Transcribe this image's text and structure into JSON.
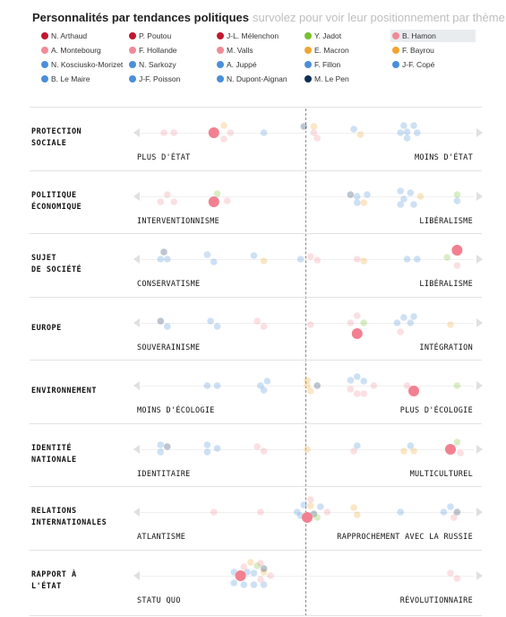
{
  "header": {
    "title": "Personnalités par tendances politiques",
    "subtitle": "survolez pour voir leur positionnement par thème"
  },
  "colors": {
    "far_left": "#c0182e",
    "green": "#78c02f",
    "socialist": "#f08b98",
    "center": "#f0a52f",
    "right": "#4a8fd8",
    "far_right": "#0d2f57",
    "highlight": "#f28090"
  },
  "legend": [
    {
      "name": "N. Arthaud",
      "color": "#c0182e"
    },
    {
      "name": "P. Poutou",
      "color": "#c0182e"
    },
    {
      "name": "J-L. Mélenchon",
      "color": "#c0182e"
    },
    {
      "name": "Y. Jadot",
      "color": "#78c02f"
    },
    {
      "name": "B. Hamon",
      "color": "#f08b98",
      "highlighted": true
    },
    {
      "name": "A. Montebourg",
      "color": "#f08b98"
    },
    {
      "name": "F. Hollande",
      "color": "#f08b98"
    },
    {
      "name": "M. Valls",
      "color": "#f08b98"
    },
    {
      "name": "E. Macron",
      "color": "#f0a52f"
    },
    {
      "name": "F. Bayrou",
      "color": "#f0a52f"
    },
    {
      "name": "N. Kosciusko-Morizet",
      "color": "#4a8fd8"
    },
    {
      "name": "N. Sarkozy",
      "color": "#4a8fd8"
    },
    {
      "name": "A. Juppé",
      "color": "#4a8fd8"
    },
    {
      "name": "F. Fillon",
      "color": "#4a8fd8"
    },
    {
      "name": "J-F. Copé",
      "color": "#4a8fd8"
    },
    {
      "name": "B. Le Maire",
      "color": "#4a8fd8"
    },
    {
      "name": "J-F. Poisson",
      "color": "#4a8fd8"
    },
    {
      "name": "N. Dupont-Aignan",
      "color": "#4a8fd8"
    },
    {
      "name": "M. Le Pen",
      "color": "#0d2f57"
    }
  ],
  "chart_data": {
    "type": "scatter",
    "scale": "position from left pole (0) to right pole (1), 0.5 = neutral",
    "rows": [
      {
        "label": "PROTECTION\nSOCIALE",
        "left": "PLUS D'ÉTAT",
        "right": "MOINS D'ÉTAT",
        "points": [
          {
            "x": 0.07,
            "dy": 0,
            "c": "socialist"
          },
          {
            "x": 0.1,
            "dy": 0,
            "c": "socialist"
          },
          {
            "x": 0.22,
            "dy": 0,
            "c": "socialist",
            "hl": true
          },
          {
            "x": 0.25,
            "dy": -8,
            "c": "center"
          },
          {
            "x": 0.25,
            "dy": 7,
            "c": "socialist"
          },
          {
            "x": 0.27,
            "dy": 0,
            "c": "socialist"
          },
          {
            "x": 0.37,
            "dy": 0,
            "c": "right"
          },
          {
            "x": 0.49,
            "dy": -7,
            "c": "far_right"
          },
          {
            "x": 0.52,
            "dy": -7,
            "c": "center"
          },
          {
            "x": 0.52,
            "dy": 0,
            "c": "socialist"
          },
          {
            "x": 0.53,
            "dy": 6,
            "c": "socialist"
          },
          {
            "x": 0.64,
            "dy": -4,
            "c": "right"
          },
          {
            "x": 0.66,
            "dy": 2,
            "c": "center"
          },
          {
            "x": 0.79,
            "dy": -8,
            "c": "right"
          },
          {
            "x": 0.82,
            "dy": -8,
            "c": "right"
          },
          {
            "x": 0.78,
            "dy": 0,
            "c": "right"
          },
          {
            "x": 0.83,
            "dy": 0,
            "c": "right"
          },
          {
            "x": 0.8,
            "dy": 6,
            "c": "right"
          },
          {
            "x": 0.8,
            "dy": -1,
            "c": "right"
          }
        ]
      },
      {
        "label": "POLITIQUE\nÉCONOMIQUE",
        "left": "INTERVENTIONNISME",
        "right": "LIBÉRALISME",
        "points": [
          {
            "x": 0.06,
            "dy": 6,
            "c": "socialist"
          },
          {
            "x": 0.08,
            "dy": -2,
            "c": "socialist"
          },
          {
            "x": 0.1,
            "dy": 6,
            "c": "socialist"
          },
          {
            "x": 0.22,
            "dy": 6,
            "c": "socialist",
            "hl": true
          },
          {
            "x": 0.23,
            "dy": -3,
            "c": "green"
          },
          {
            "x": 0.26,
            "dy": 5,
            "c": "socialist"
          },
          {
            "x": 0.63,
            "dy": -2,
            "c": "far_right"
          },
          {
            "x": 0.65,
            "dy": 0,
            "c": "right"
          },
          {
            "x": 0.68,
            "dy": -2,
            "c": "right"
          },
          {
            "x": 0.65,
            "dy": 7,
            "c": "right"
          },
          {
            "x": 0.67,
            "dy": 7,
            "c": "center"
          },
          {
            "x": 0.78,
            "dy": -6,
            "c": "right"
          },
          {
            "x": 0.81,
            "dy": -4,
            "c": "right"
          },
          {
            "x": 0.79,
            "dy": 3,
            "c": "right"
          },
          {
            "x": 0.84,
            "dy": 0,
            "c": "center"
          },
          {
            "x": 0.78,
            "dy": 9,
            "c": "right"
          },
          {
            "x": 0.82,
            "dy": 9,
            "c": "right"
          },
          {
            "x": 0.95,
            "dy": -2,
            "c": "green"
          },
          {
            "x": 0.95,
            "dy": 5,
            "c": "right"
          }
        ]
      },
      {
        "label": "SUJET\nDE SOCIÉTÉ",
        "left": "CONSERVATISME",
        "right": "LIBÉRALISME",
        "points": [
          {
            "x": 0.06,
            "dy": 0,
            "c": "right"
          },
          {
            "x": 0.07,
            "dy": -8,
            "c": "far_right"
          },
          {
            "x": 0.08,
            "dy": 0,
            "c": "right"
          },
          {
            "x": 0.2,
            "dy": -5,
            "c": "right"
          },
          {
            "x": 0.22,
            "dy": 3,
            "c": "right"
          },
          {
            "x": 0.34,
            "dy": -4,
            "c": "right"
          },
          {
            "x": 0.37,
            "dy": 2,
            "c": "center"
          },
          {
            "x": 0.48,
            "dy": 0,
            "c": "right"
          },
          {
            "x": 0.51,
            "dy": -3,
            "c": "socialist"
          },
          {
            "x": 0.53,
            "dy": 1,
            "c": "socialist"
          },
          {
            "x": 0.65,
            "dy": 0,
            "c": "socialist"
          },
          {
            "x": 0.67,
            "dy": 2,
            "c": "center"
          },
          {
            "x": 0.8,
            "dy": 0,
            "c": "right"
          },
          {
            "x": 0.83,
            "dy": 0,
            "c": "right"
          },
          {
            "x": 0.92,
            "dy": -2,
            "c": "green"
          },
          {
            "x": 0.95,
            "dy": -10,
            "c": "socialist",
            "hl": true
          },
          {
            "x": 0.95,
            "dy": 7,
            "c": "socialist"
          }
        ]
      },
      {
        "label": "EUROPE",
        "left": "SOUVERAINISME",
        "right": "INTÉGRATION",
        "points": [
          {
            "x": 0.06,
            "dy": -2,
            "c": "far_right"
          },
          {
            "x": 0.08,
            "dy": 4,
            "c": "right"
          },
          {
            "x": 0.21,
            "dy": -2,
            "c": "right"
          },
          {
            "x": 0.23,
            "dy": 4,
            "c": "right"
          },
          {
            "x": 0.35,
            "dy": -2,
            "c": "socialist"
          },
          {
            "x": 0.37,
            "dy": 4,
            "c": "socialist"
          },
          {
            "x": 0.51,
            "dy": 2,
            "c": "socialist"
          },
          {
            "x": 0.63,
            "dy": 0,
            "c": "socialist"
          },
          {
            "x": 0.65,
            "dy": -8,
            "c": "socialist"
          },
          {
            "x": 0.67,
            "dy": 0,
            "c": "green"
          },
          {
            "x": 0.65,
            "dy": 12,
            "c": "socialist",
            "hl": true
          },
          {
            "x": 0.77,
            "dy": 0,
            "c": "right"
          },
          {
            "x": 0.79,
            "dy": -6,
            "c": "right"
          },
          {
            "x": 0.82,
            "dy": -7,
            "c": "right"
          },
          {
            "x": 0.81,
            "dy": 0,
            "c": "right"
          },
          {
            "x": 0.78,
            "dy": 10,
            "c": "socialist"
          },
          {
            "x": 0.93,
            "dy": 2,
            "c": "center"
          }
        ]
      },
      {
        "label": "ENVIRONNEMENT",
        "left": "MOINS D'ÉCOLOGIE",
        "right": "PLUS D'ÉCOLOGIE",
        "points": [
          {
            "x": 0.2,
            "dy": 0,
            "c": "right"
          },
          {
            "x": 0.23,
            "dy": 0,
            "c": "right"
          },
          {
            "x": 0.36,
            "dy": 0,
            "c": "right"
          },
          {
            "x": 0.38,
            "dy": -5,
            "c": "right"
          },
          {
            "x": 0.37,
            "dy": 5,
            "c": "right"
          },
          {
            "x": 0.5,
            "dy": -6,
            "c": "center"
          },
          {
            "x": 0.5,
            "dy": 0,
            "c": "center"
          },
          {
            "x": 0.51,
            "dy": 6,
            "c": "center"
          },
          {
            "x": 0.53,
            "dy": 0,
            "c": "far_right"
          },
          {
            "x": 0.63,
            "dy": -6,
            "c": "right"
          },
          {
            "x": 0.65,
            "dy": -10,
            "c": "right"
          },
          {
            "x": 0.67,
            "dy": -5,
            "c": "right"
          },
          {
            "x": 0.63,
            "dy": 4,
            "c": "socialist"
          },
          {
            "x": 0.67,
            "dy": 9,
            "c": "socialist"
          },
          {
            "x": 0.7,
            "dy": 0,
            "c": "socialist"
          },
          {
            "x": 0.65,
            "dy": 9,
            "c": "socialist"
          },
          {
            "x": 0.8,
            "dy": 0,
            "c": "socialist"
          },
          {
            "x": 0.82,
            "dy": 6,
            "c": "socialist",
            "hl": true
          },
          {
            "x": 0.95,
            "dy": 0,
            "c": "green"
          }
        ]
      },
      {
        "label": "IDENTITÉ\nNATIONALE",
        "left": "IDENTITAIRE",
        "right": "MULTICULTUREL",
        "points": [
          {
            "x": 0.06,
            "dy": -5,
            "c": "right"
          },
          {
            "x": 0.06,
            "dy": 3,
            "c": "right"
          },
          {
            "x": 0.08,
            "dy": -3,
            "c": "far_right"
          },
          {
            "x": 0.2,
            "dy": -5,
            "c": "right"
          },
          {
            "x": 0.2,
            "dy": 3,
            "c": "right"
          },
          {
            "x": 0.23,
            "dy": -1,
            "c": "right"
          },
          {
            "x": 0.35,
            "dy": -3,
            "c": "socialist"
          },
          {
            "x": 0.37,
            "dy": 2,
            "c": "socialist"
          },
          {
            "x": 0.5,
            "dy": 0,
            "c": "center"
          },
          {
            "x": 0.64,
            "dy": 2,
            "c": "socialist"
          },
          {
            "x": 0.65,
            "dy": -4,
            "c": "right"
          },
          {
            "x": 0.79,
            "dy": 2,
            "c": "center"
          },
          {
            "x": 0.81,
            "dy": -4,
            "c": "right"
          },
          {
            "x": 0.82,
            "dy": 2,
            "c": "center"
          },
          {
            "x": 0.93,
            "dy": 0,
            "c": "socialist",
            "hl": true
          },
          {
            "x": 0.95,
            "dy": -8,
            "c": "green"
          },
          {
            "x": 0.96,
            "dy": 4,
            "c": "socialist"
          }
        ]
      },
      {
        "label": "RELATIONS\nINTERNATIONALES",
        "left": "ATLANTISME",
        "right": "RAPPROCHEMENT AVEC LA RUSSIE",
        "points": [
          {
            "x": 0.22,
            "dy": 0,
            "c": "socialist"
          },
          {
            "x": 0.36,
            "dy": 0,
            "c": "socialist"
          },
          {
            "x": 0.47,
            "dy": 0,
            "c": "right"
          },
          {
            "x": 0.49,
            "dy": -8,
            "c": "right"
          },
          {
            "x": 0.51,
            "dy": -14,
            "c": "socialist"
          },
          {
            "x": 0.51,
            "dy": -7,
            "c": "center"
          },
          {
            "x": 0.48,
            "dy": 4,
            "c": "right"
          },
          {
            "x": 0.52,
            "dy": 2,
            "c": "far_right"
          },
          {
            "x": 0.53,
            "dy": 6,
            "c": "green"
          },
          {
            "x": 0.54,
            "dy": -6,
            "c": "right"
          },
          {
            "x": 0.5,
            "dy": 6,
            "c": "socialist",
            "hl": true
          },
          {
            "x": 0.56,
            "dy": 0,
            "c": "socialist"
          },
          {
            "x": 0.64,
            "dy": -5,
            "c": "center"
          },
          {
            "x": 0.65,
            "dy": 3,
            "c": "center"
          },
          {
            "x": 0.78,
            "dy": 0,
            "c": "right"
          },
          {
            "x": 0.91,
            "dy": 0,
            "c": "right"
          },
          {
            "x": 0.93,
            "dy": -6,
            "c": "right"
          },
          {
            "x": 0.95,
            "dy": 0,
            "c": "far_right"
          },
          {
            "x": 0.94,
            "dy": 6,
            "c": "socialist"
          }
        ]
      },
      {
        "label": "RAPPORT À\nL'ÉTAT",
        "left": "STATU QUO",
        "right": "RÉVOLUTIONNAIRE",
        "points": [
          {
            "x": 0.3,
            "dy": 0,
            "c": "socialist",
            "hl": true
          },
          {
            "x": 0.31,
            "dy": -10,
            "c": "socialist"
          },
          {
            "x": 0.33,
            "dy": -15,
            "c": "center"
          },
          {
            "x": 0.35,
            "dy": -11,
            "c": "green"
          },
          {
            "x": 0.28,
            "dy": -4,
            "c": "right"
          },
          {
            "x": 0.32,
            "dy": -4,
            "c": "right"
          },
          {
            "x": 0.34,
            "dy": -3,
            "c": "right"
          },
          {
            "x": 0.37,
            "dy": -4,
            "c": "center"
          },
          {
            "x": 0.36,
            "dy": 4,
            "c": "socialist"
          },
          {
            "x": 0.39,
            "dy": 0,
            "c": "socialist"
          },
          {
            "x": 0.37,
            "dy": -8,
            "c": "far_right"
          },
          {
            "x": 0.28,
            "dy": 8,
            "c": "right"
          },
          {
            "x": 0.31,
            "dy": 10,
            "c": "right"
          },
          {
            "x": 0.34,
            "dy": 10,
            "c": "right"
          },
          {
            "x": 0.37,
            "dy": 10,
            "c": "right"
          },
          {
            "x": 0.36,
            "dy": -14,
            "c": "socialist"
          },
          {
            "x": 0.93,
            "dy": -3,
            "c": "socialist"
          },
          {
            "x": 0.95,
            "dy": 3,
            "c": "socialist"
          }
        ]
      }
    ]
  }
}
